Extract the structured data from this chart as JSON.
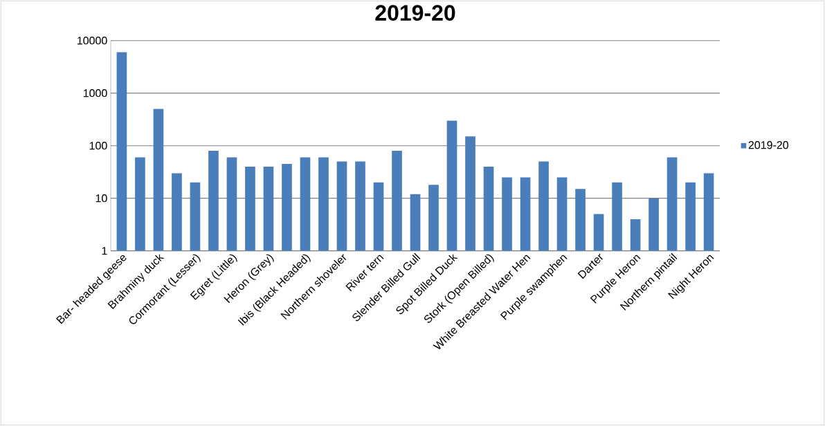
{
  "chart_data": {
    "type": "bar",
    "title": "2019-20",
    "categories": [
      "Bar- headed geese",
      null,
      "Brahminy duck",
      null,
      "Cormorant (Lesser)",
      null,
      "Egret (Little)",
      null,
      "Heron (Grey)",
      null,
      "Ibis (Black Headed)",
      null,
      "Northern shoveler",
      null,
      "River tern",
      null,
      "Slender Billed Gull",
      null,
      "Spot Billed Duck",
      null,
      "Stork (Open Billed)",
      null,
      "White Breasted Water Hen",
      null,
      "Purple swamphen",
      null,
      "Darter",
      null,
      "Purple Heron",
      null,
      "Northern pintail",
      null,
      "Night Heron"
    ],
    "series": [
      {
        "name": "2019-20",
        "color": "#4a7ebb",
        "values": [
          6000,
          60,
          500,
          30,
          20,
          80,
          60,
          40,
          40,
          45,
          60,
          60,
          50,
          50,
          20,
          80,
          12,
          18,
          300,
          150,
          40,
          25,
          25,
          50,
          25,
          15,
          5,
          20,
          4,
          10,
          60,
          20,
          30
        ]
      }
    ],
    "log": "y",
    "ylim": [
      1,
      10000
    ],
    "yticks": [
      1,
      10,
      100,
      1000,
      10000
    ],
    "grid": "y",
    "legend": "right"
  }
}
